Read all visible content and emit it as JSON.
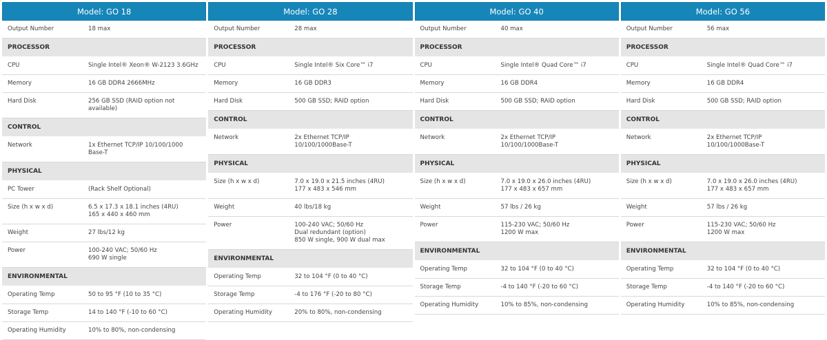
{
  "models": [
    {
      "title": "Model: GO 18",
      "output_label": "Output Number",
      "output": "18 max",
      "sections": [
        {
          "name": "PROCESSOR",
          "rows": [
            [
              "CPU",
              "Single Intel® Xeon® W-2123 3.6GHz"
            ],
            [
              "Memory",
              "16 GB DDR4 2666MHz"
            ],
            [
              "Hard Disk",
              "256 GB SSD (RAID option not available)"
            ]
          ]
        },
        {
          "name": "CONTROL",
          "rows": [
            [
              "Network",
              "1x Ethernet TCP/IP 10/100/1000 Base-T"
            ]
          ]
        },
        {
          "name": "PHYSICAL",
          "rows": [
            [
              "PC Tower",
              "(Rack Shelf Optional)"
            ],
            [
              "Size (h x w x d)",
              "6.5 x 17.3 x 18.1 inches (4RU)\n165 x 440 x 460 mm"
            ],
            [
              "Weight",
              "27 lbs/12 kg"
            ],
            [
              "Power",
              "100-240 VAC; 50/60 Hz\n690 W single"
            ]
          ]
        },
        {
          "name": "ENVIRONMENTAL",
          "rows": [
            [
              "Operating Temp",
              "50 to 95 °F (10 to 35 °C)"
            ],
            [
              "Storage Temp",
              "14 to 140 °F (-10 to 60 °C)"
            ],
            [
              "Operating Humidity",
              "10% to 80%, non-condensing"
            ]
          ]
        }
      ]
    },
    {
      "title": "Model: GO 28",
      "output_label": "Output Number",
      "output": "28 max",
      "sections": [
        {
          "name": "PROCESSOR",
          "rows": [
            [
              "CPU",
              "Single Intel® Six Core™ i7"
            ],
            [
              "Memory",
              "16 GB DDR3"
            ],
            [
              "Hard Disk",
              "500 GB SSD; RAID option"
            ]
          ]
        },
        {
          "name": "CONTROL",
          "rows": [
            [
              "Network",
              "2x Ethernet TCP/IP\n10/100/1000Base-T"
            ]
          ]
        },
        {
          "name": "PHYSICAL",
          "rows": [
            [
              "Size (h x w x d)",
              "7.0 x 19.0 x 21.5 inches (4RU)\n177 x 483 x 546 mm"
            ],
            [
              "Weight",
              "40 lbs/18 kg"
            ],
            [
              "Power",
              "100-240 VAC; 50/60 Hz\nDual redundant (option)\n850 W single, 900 W dual max"
            ]
          ]
        },
        {
          "name": "ENVIRONMENTAL",
          "rows": [
            [
              "Operating Temp",
              "32 to 104 °F (0 to 40 °C)"
            ],
            [
              "Storage Temp",
              "-4 to 176 °F (-20 to 80 °C)"
            ],
            [
              "Operating Humidity",
              "20% to 80%, non-condensing"
            ]
          ]
        }
      ]
    },
    {
      "title": "Model: GO 40",
      "output_label": "Output Number",
      "output": "40 max",
      "sections": [
        {
          "name": "PROCESSOR",
          "rows": [
            [
              "CPU",
              "Single Intel® Quad Core™ i7"
            ],
            [
              "Memory",
              "16 GB DDR4"
            ],
            [
              "Hard Disk",
              "500 GB SSD; RAID option"
            ]
          ]
        },
        {
          "name": "CONTROL",
          "rows": [
            [
              "Network",
              "2x Ethernet TCP/IP\n10/100/1000Base-T"
            ]
          ]
        },
        {
          "name": "PHYSICAL",
          "rows": [
            [
              "Size (h x w x d)",
              "7.0 x 19.0 x 26.0 inches (4RU)\n177 x 483 x 657 mm"
            ],
            [
              "Weight",
              "57 lbs / 26 kg"
            ],
            [
              "Power",
              "115-230 VAC; 50/60 Hz\n1200 W max"
            ]
          ]
        },
        {
          "name": "ENVIRONMENTAL",
          "rows": [
            [
              "Operating Temp",
              "32 to 104 °F (0 to 40 °C)"
            ],
            [
              "Storage Temp",
              "-4 to 140 °F (-20 to 60 °C)"
            ],
            [
              "Operating Humidity",
              "10% to 85%, non-condensing"
            ]
          ]
        }
      ]
    },
    {
      "title": "Model: GO 56",
      "output_label": "Output Number",
      "output": "56 max",
      "sections": [
        {
          "name": "PROCESSOR",
          "rows": [
            [
              "CPU",
              "Single Intel® Quad Core™ i7"
            ],
            [
              "Memory",
              "16 GB DDR4"
            ],
            [
              "Hard Disk",
              "500 GB SSD; RAID option"
            ]
          ]
        },
        {
          "name": "CONTROL",
          "rows": [
            [
              "Network",
              "2x Ethernet TCP/IP\n10/100/1000Base-T"
            ]
          ]
        },
        {
          "name": "PHYSICAL",
          "rows": [
            [
              "Size (h x w x d)",
              "7.0 x 19.0 x 26.0 inches (4RU)\n177 x 483 x 657 mm"
            ],
            [
              "Weight",
              "57 lbs / 26 kg"
            ],
            [
              "Power",
              "115-230 VAC; 50/60 Hz\n1200 W max"
            ]
          ]
        },
        {
          "name": "ENVIRONMENTAL",
          "rows": [
            [
              "Operating Temp",
              "32 to 104 °F (0 to 40 °C)"
            ],
            [
              "Storage Temp",
              "-4 to 140 °F (-20 to 60 °C)"
            ],
            [
              "Operating Humidity",
              "10% to 85%, non-condensing"
            ]
          ]
        }
      ]
    }
  ]
}
